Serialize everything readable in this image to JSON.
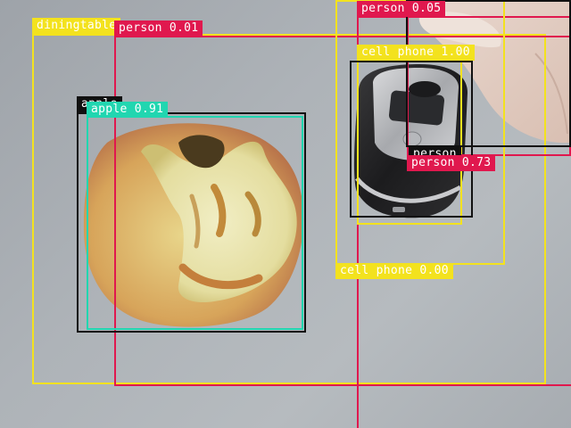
{
  "image": {
    "description_free": true
  },
  "detections": [
    {
      "label": "diningtable",
      "color": "#f3e21e",
      "text_color": "#ffffff"
    },
    {
      "label": "person 0.01",
      "color": "#e0184e",
      "text_color": "#ffffff"
    },
    {
      "label": "person 0.05",
      "color": "#e0184e",
      "text_color": "#ffffff"
    },
    {
      "label": "cell phone 1.00",
      "color": "#f3e21e",
      "text_color": "#ffffff"
    },
    {
      "label": "apple",
      "color": "#111111",
      "text_color": "#ffffff"
    },
    {
      "label": "apple 0.91",
      "color": "#21d6b0",
      "text_color": "#ffffff"
    },
    {
      "label": "person 0.73",
      "color": "#e0184e",
      "text_color": "#ffffff"
    },
    {
      "label": "cell phone 0.00",
      "color": "#f3e21e",
      "text_color": "#ffffff"
    },
    {
      "label": "person",
      "color": "#111111",
      "text_color": "#ffffff"
    }
  ]
}
